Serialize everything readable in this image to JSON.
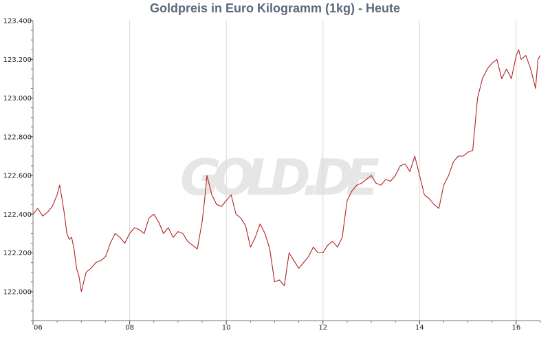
{
  "chart_data": {
    "type": "line",
    "title": "Goldpreis in Euro Kilogramm (1kg) - Heute",
    "xlabel": "",
    "ylabel": "",
    "x_unit": "hour",
    "xlim": [
      6,
      16.5
    ],
    "ylim": [
      121.85,
      123.4
    ],
    "x_ticks": [
      6,
      8,
      10,
      12,
      14,
      16
    ],
    "x_tick_labels": [
      "06",
      "08",
      "10",
      "12",
      "14",
      "16"
    ],
    "y_ticks": [
      122.0,
      122.2,
      122.4,
      122.6,
      122.8,
      123.0,
      123.2,
      123.4
    ],
    "y_tick_labels": [
      "122.000",
      "122.200",
      "122.400",
      "122.600",
      "122.800",
      "123.000",
      "123.200",
      "123.400"
    ],
    "grid": "vertical",
    "watermark": "GOLD.DE",
    "line_color": "#b22222",
    "series": [
      {
        "name": "",
        "x": [
          6.0,
          6.1,
          6.2,
          6.3,
          6.4,
          6.5,
          6.55,
          6.6,
          6.65,
          6.7,
          6.75,
          6.8,
          6.85,
          6.9,
          6.95,
          7.0,
          7.1,
          7.2,
          7.3,
          7.4,
          7.5,
          7.6,
          7.7,
          7.8,
          7.9,
          8.0,
          8.1,
          8.2,
          8.3,
          8.4,
          8.5,
          8.6,
          8.7,
          8.8,
          8.9,
          9.0,
          9.1,
          9.2,
          9.3,
          9.4,
          9.5,
          9.55,
          9.6,
          9.7,
          9.8,
          9.9,
          10.0,
          10.1,
          10.2,
          10.3,
          10.4,
          10.5,
          10.6,
          10.7,
          10.8,
          10.9,
          11.0,
          11.1,
          11.2,
          11.3,
          11.4,
          11.5,
          11.6,
          11.7,
          11.8,
          11.9,
          12.0,
          12.1,
          12.2,
          12.3,
          12.4,
          12.5,
          12.6,
          12.7,
          12.8,
          12.9,
          13.0,
          13.1,
          13.2,
          13.3,
          13.4,
          13.5,
          13.6,
          13.7,
          13.8,
          13.9,
          14.0,
          14.1,
          14.2,
          14.3,
          14.4,
          14.5,
          14.6,
          14.7,
          14.8,
          14.9,
          15.0,
          15.1,
          15.2,
          15.3,
          15.4,
          15.5,
          15.6,
          15.7,
          15.8,
          15.9,
          16.0,
          16.05,
          16.1,
          16.2,
          16.3,
          16.4,
          16.45,
          16.5
        ],
        "y": [
          122.4,
          122.43,
          122.39,
          122.41,
          122.44,
          122.5,
          122.55,
          122.48,
          122.4,
          122.3,
          122.27,
          122.28,
          122.22,
          122.12,
          122.08,
          122.0,
          122.1,
          122.12,
          122.15,
          122.16,
          122.18,
          122.25,
          122.3,
          122.28,
          122.25,
          122.3,
          122.33,
          122.32,
          122.3,
          122.38,
          122.4,
          122.36,
          122.3,
          122.33,
          122.28,
          122.31,
          122.3,
          122.26,
          122.24,
          122.22,
          122.36,
          122.47,
          122.6,
          122.5,
          122.45,
          122.44,
          122.47,
          122.5,
          122.4,
          122.38,
          122.34,
          122.23,
          122.28,
          122.35,
          122.3,
          122.22,
          122.05,
          122.06,
          122.03,
          122.2,
          122.16,
          122.12,
          122.15,
          122.18,
          122.23,
          122.2,
          122.2,
          122.24,
          122.26,
          122.23,
          122.28,
          122.47,
          122.52,
          122.55,
          122.56,
          122.58,
          122.6,
          122.56,
          122.55,
          122.58,
          122.57,
          122.6,
          122.65,
          122.66,
          122.62,
          122.7,
          122.6,
          122.5,
          122.48,
          122.45,
          122.43,
          122.55,
          122.6,
          122.67,
          122.7,
          122.7,
          122.72,
          122.73,
          123.0,
          123.1,
          123.15,
          123.18,
          123.2,
          123.1,
          123.15,
          123.1,
          123.22,
          123.25,
          123.2,
          123.22,
          123.15,
          123.05,
          123.2,
          123.22
        ]
      }
    ]
  }
}
